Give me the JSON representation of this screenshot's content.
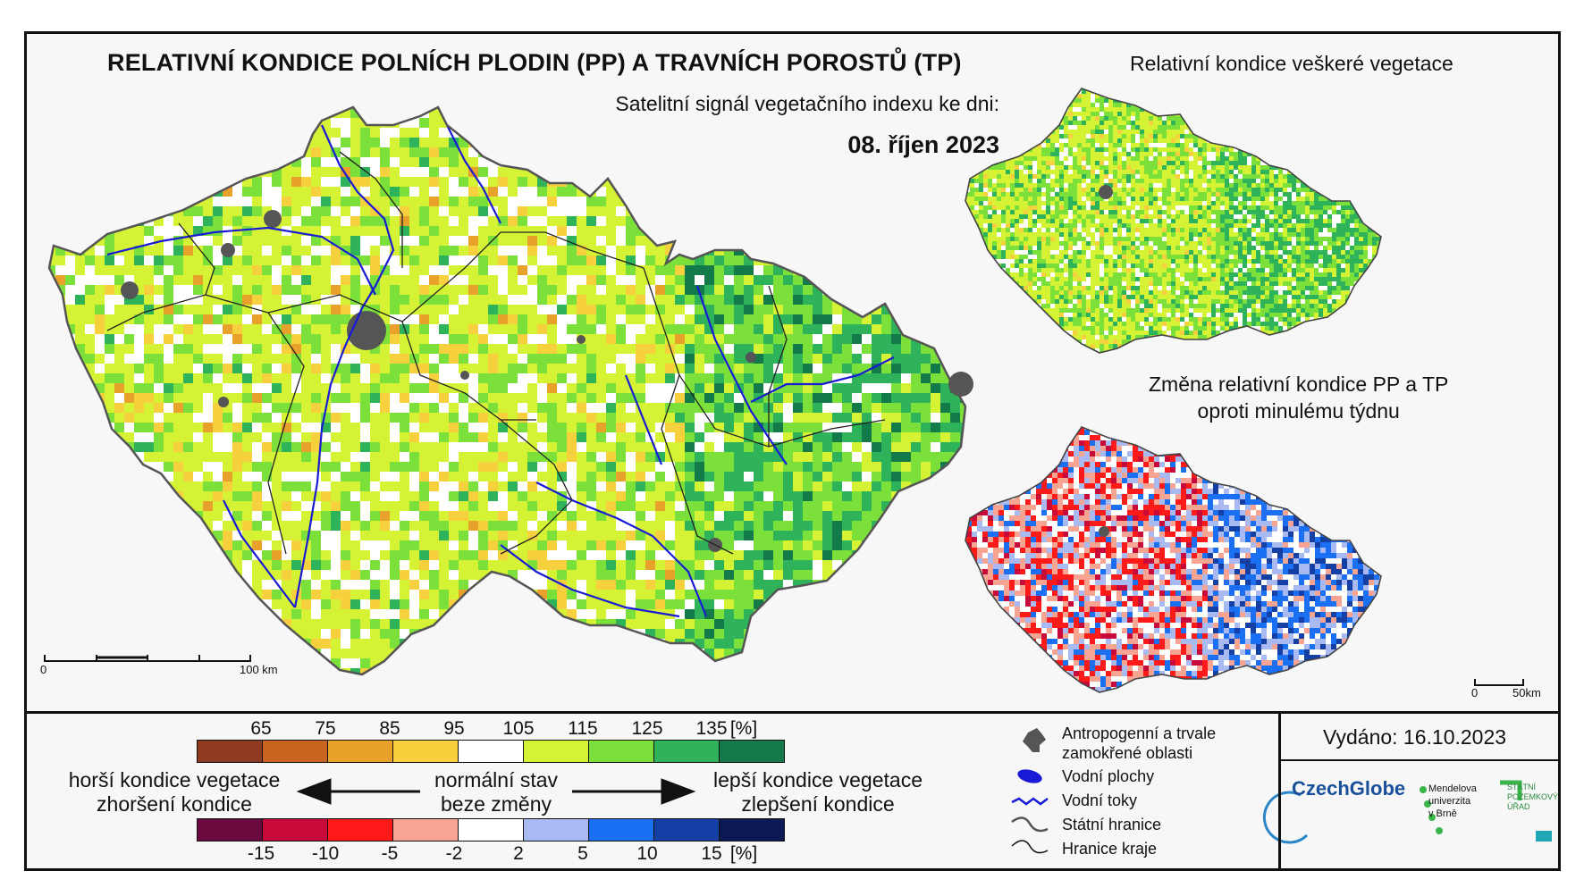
{
  "title": "RELATIVNÍ KONDICE POLNÍCH PLODIN (PP) A TRAVNÍCH POROSTŮ (TP)",
  "subtitle": "Satelitní signál vegetačního indexu ke dni:",
  "date": "08. říjen 2023",
  "right_top_title": "Relativní kondice veškeré vegetace",
  "right_bottom_title_line1": "Změna relativní kondice PP a TP",
  "right_bottom_title_line2": "oproti minulému týdnu",
  "scale_main": {
    "zero": "0",
    "end": "100 km"
  },
  "scale_small": {
    "zero": "0",
    "end": "50km"
  },
  "legend_condition": {
    "ticks": [
      "65",
      "75",
      "85",
      "95",
      "105",
      "115",
      "125",
      "135",
      "[%]"
    ],
    "colors": [
      "#8e3b22",
      "#c9641f",
      "#e8a22c",
      "#f6d03d",
      "#ffffff",
      "#d6f235",
      "#7ce03a",
      "#2fb35a",
      "#137a4a"
    ]
  },
  "legend_change": {
    "ticks": [
      "-15",
      "-10",
      "-5",
      "-2",
      "2",
      "5",
      "10",
      "15",
      "[%]"
    ],
    "colors": [
      "#6b0a3e",
      "#c80a3a",
      "#ff1a1a",
      "#f7a493",
      "#ffffff",
      "#a9baf2",
      "#1a6ff2",
      "#143fa5",
      "#0b1a52"
    ]
  },
  "left_text": {
    "line1": "horší kondice vegetace",
    "line2": "zhoršení kondice"
  },
  "mid_text": {
    "line1": "normální stav",
    "line2": "beze změny"
  },
  "right_text": {
    "line1": "lepší kondice vegetace",
    "line2": "zlepšení kondice"
  },
  "map_legend": {
    "anthro_line1": "Antropogenní a trvale",
    "anthro_line2": "zamokřené oblasti",
    "water_bodies": "Vodní plochy",
    "rivers": "Vodní toky",
    "state_border": "Státní hranice",
    "region_border": "Hranice kraje"
  },
  "issued": "Vydáno: 16.10.2023",
  "logos": {
    "czechglobe": "CzechGlobe",
    "mendel_line1": "Mendelova",
    "mendel_line2": "univerzita",
    "mendel_line3": "v Brně",
    "spu_line1": "STÁTNÍ",
    "spu_line2": "POZEMKOVÝ",
    "spu_line3": "ÚŘAD"
  },
  "colors": {
    "anthro": "#555555",
    "river": "#1a1ad6",
    "border": "#222222"
  }
}
